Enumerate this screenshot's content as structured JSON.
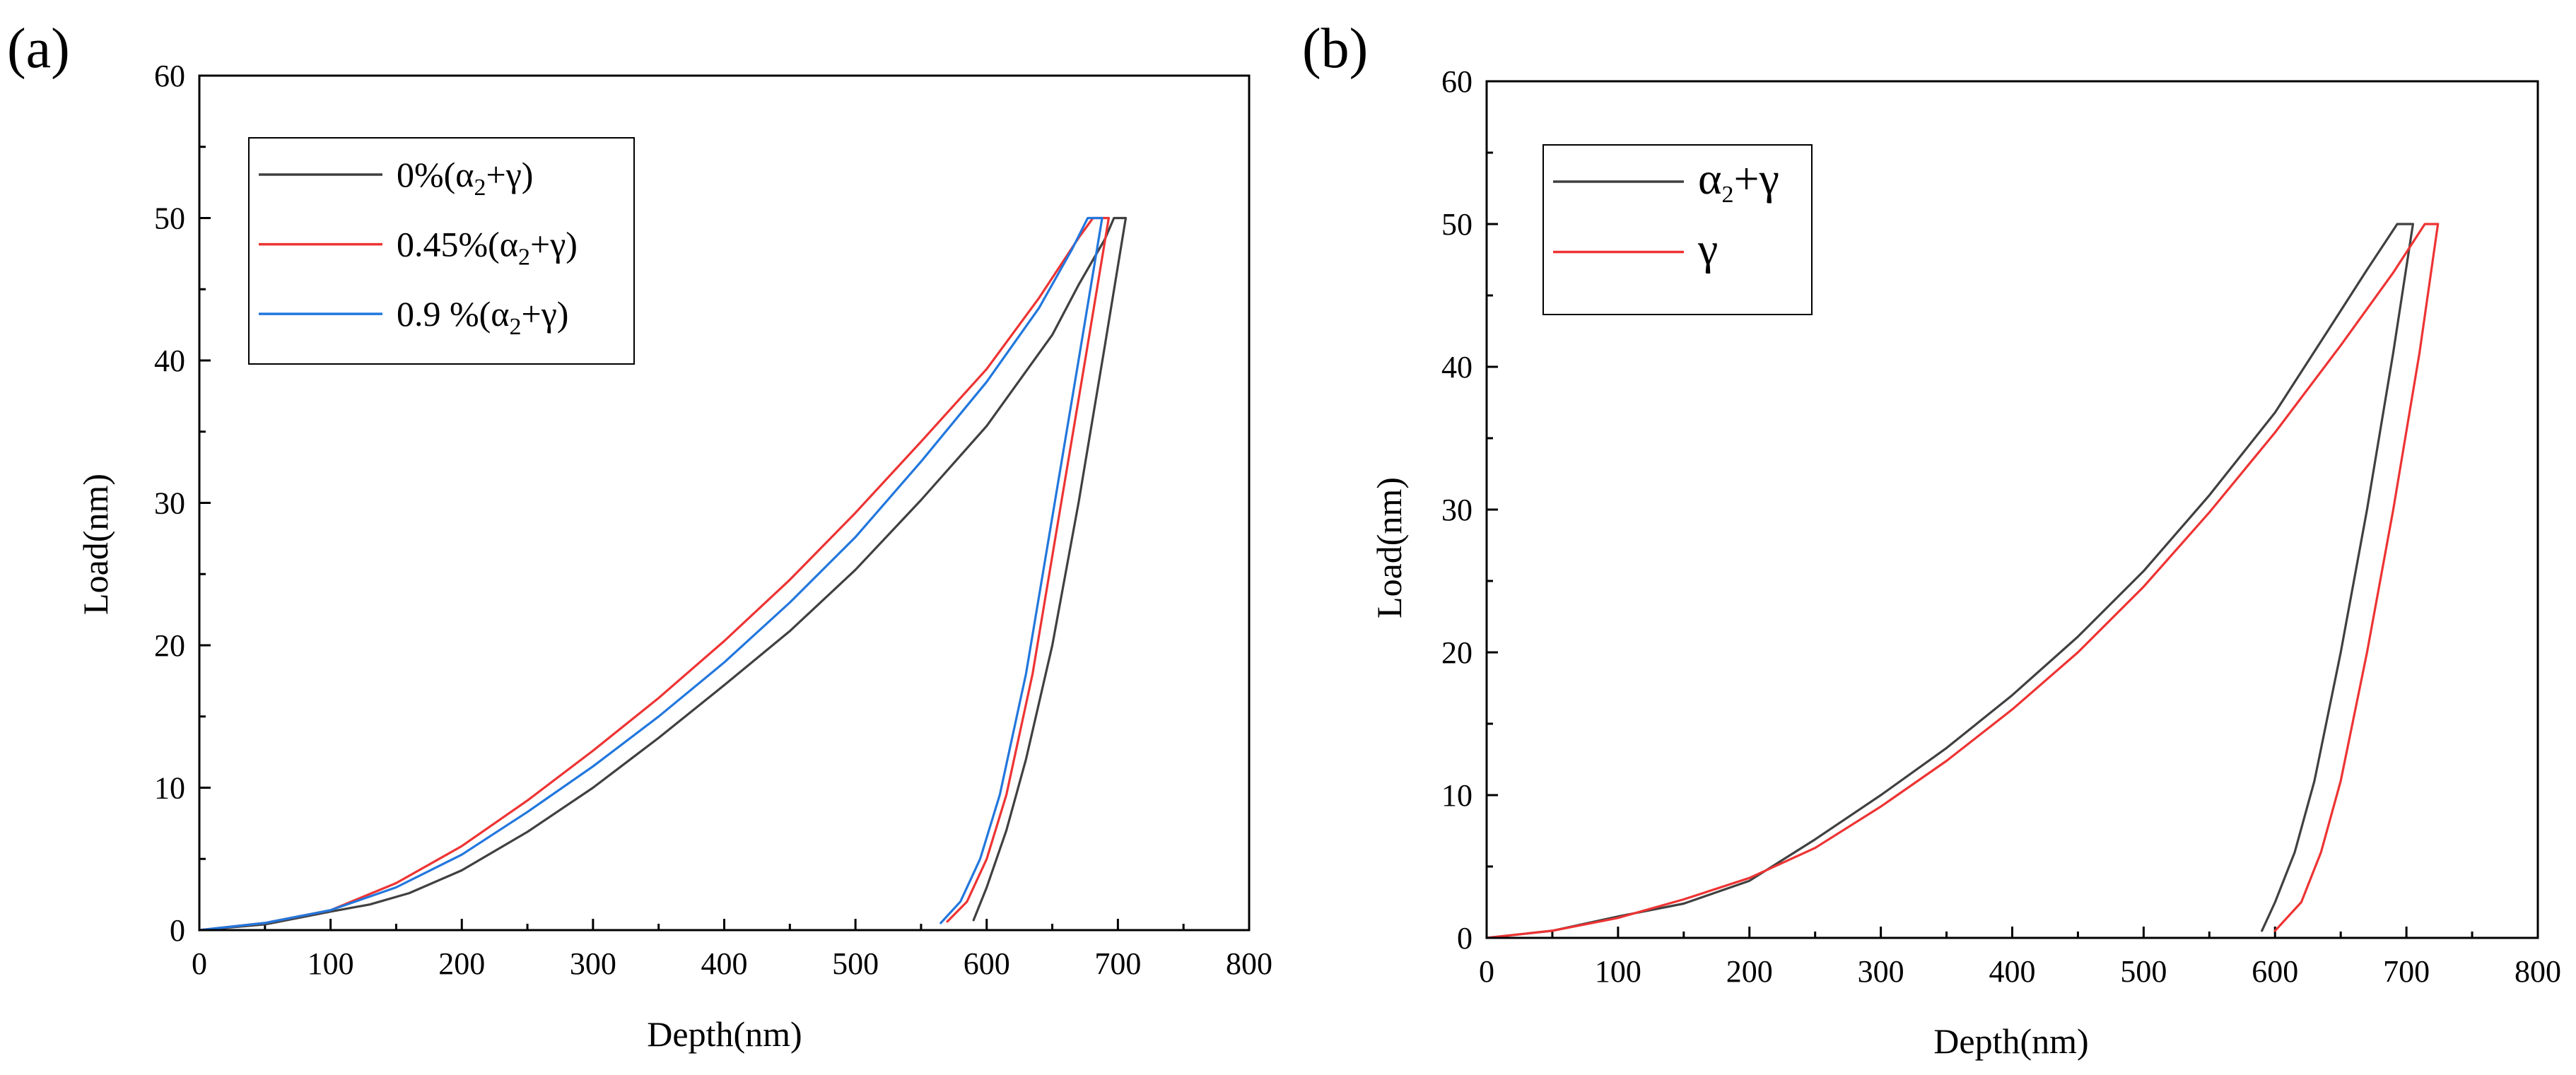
{
  "chart_data": [
    {
      "panel_label": "(a)",
      "type": "line",
      "xlabel": "Depth(nm)",
      "ylabel": "Load(nm)",
      "xlim": [
        0,
        800
      ],
      "ylim": [
        0,
        60
      ],
      "xticks": [
        0,
        100,
        200,
        300,
        400,
        500,
        600,
        700,
        800
      ],
      "yticks": [
        0,
        10,
        20,
        30,
        40,
        50,
        60
      ],
      "grid": false,
      "legend_position": "top-left",
      "series": [
        {
          "name": "0%(α2+γ)",
          "label_base": "0%(α",
          "label_sub": "2",
          "label_tail": "+γ)",
          "color": "#404040",
          "loading": [
            [
              0,
              0
            ],
            [
              50,
              0.4
            ],
            [
              100,
              1.3
            ],
            [
              130,
              1.8
            ],
            [
              160,
              2.6
            ],
            [
              200,
              4.2
            ],
            [
              250,
              6.9
            ],
            [
              300,
              10.0
            ],
            [
              350,
              13.5
            ],
            [
              400,
              17.2
            ],
            [
              450,
              21.0
            ],
            [
              500,
              25.3
            ],
            [
              550,
              30.2
            ],
            [
              600,
              35.4
            ],
            [
              650,
              41.8
            ],
            [
              670,
              45.3
            ],
            [
              690,
              48.5
            ],
            [
              697,
              50
            ]
          ],
          "hold": [
            [
              697,
              50
            ],
            [
              706,
              50
            ]
          ],
          "unloading": [
            [
              706,
              50
            ],
            [
              690,
              41
            ],
            [
              670,
              30
            ],
            [
              650,
              20
            ],
            [
              630,
              12
            ],
            [
              615,
              7
            ],
            [
              600,
              3
            ],
            [
              590,
              0.7
            ]
          ]
        },
        {
          "name": "0.45%(α2+γ)",
          "label_base": "0.45%(α",
          "label_sub": "2",
          "label_tail": "+γ)",
          "color": "#ee3333",
          "loading": [
            [
              0,
              0
            ],
            [
              50,
              0.5
            ],
            [
              100,
              1.4
            ],
            [
              150,
              3.3
            ],
            [
              200,
              5.9
            ],
            [
              250,
              9.1
            ],
            [
              300,
              12.6
            ],
            [
              350,
              16.3
            ],
            [
              400,
              20.3
            ],
            [
              450,
              24.6
            ],
            [
              500,
              29.3
            ],
            [
              550,
              34.3
            ],
            [
              600,
              39.4
            ],
            [
              640,
              44.4
            ],
            [
              670,
              48.6
            ],
            [
              681,
              50
            ]
          ],
          "hold": [
            [
              681,
              50
            ],
            [
              693,
              50
            ]
          ],
          "unloading": [
            [
              693,
              50
            ],
            [
              675,
              40
            ],
            [
              655,
              29
            ],
            [
              635,
              18
            ],
            [
              615,
              9.5
            ],
            [
              600,
              5
            ],
            [
              585,
              2
            ],
            [
              570,
              0.6
            ]
          ]
        },
        {
          "name": "0.9 %(α2+γ)",
          "label_base": "0.9 %(α",
          "label_sub": "2",
          "label_tail": "+γ)",
          "color": "#2277dd",
          "loading": [
            [
              0,
              0
            ],
            [
              50,
              0.5
            ],
            [
              100,
              1.4
            ],
            [
              150,
              3.0
            ],
            [
              200,
              5.3
            ],
            [
              250,
              8.3
            ],
            [
              300,
              11.5
            ],
            [
              350,
              15.0
            ],
            [
              400,
              18.8
            ],
            [
              450,
              23.0
            ],
            [
              500,
              27.6
            ],
            [
              550,
              32.9
            ],
            [
              600,
              38.5
            ],
            [
              640,
              43.7
            ],
            [
              665,
              47.8
            ],
            [
              677,
              50
            ]
          ],
          "hold": [
            [
              677,
              50
            ],
            [
              688,
              50
            ]
          ],
          "unloading": [
            [
              688,
              50
            ],
            [
              670,
              40
            ],
            [
              650,
              29
            ],
            [
              630,
              18
            ],
            [
              610,
              9.5
            ],
            [
              595,
              5
            ],
            [
              580,
              2
            ],
            [
              565,
              0.5
            ]
          ]
        }
      ]
    },
    {
      "panel_label": "(b)",
      "type": "line",
      "xlabel": "Depth(nm)",
      "ylabel": "Load(nm)",
      "xlim": [
        0,
        800
      ],
      "ylim": [
        0,
        60
      ],
      "xticks": [
        0,
        100,
        200,
        300,
        400,
        500,
        600,
        700,
        800
      ],
      "yticks": [
        0,
        10,
        20,
        30,
        40,
        50,
        60
      ],
      "grid": false,
      "legend_position": "top-left",
      "series": [
        {
          "name": "α2+γ",
          "label_base": "α",
          "label_sub": "2",
          "label_tail": "+γ",
          "color": "#404040",
          "loading": [
            [
              0,
              0
            ],
            [
              50,
              0.5
            ],
            [
              100,
              1.5
            ],
            [
              150,
              2.4
            ],
            [
              200,
              4.0
            ],
            [
              250,
              6.9
            ],
            [
              300,
              10.0
            ],
            [
              350,
              13.3
            ],
            [
              400,
              17.0
            ],
            [
              450,
              21.1
            ],
            [
              500,
              25.7
            ],
            [
              550,
              31.0
            ],
            [
              600,
              36.8
            ],
            [
              640,
              42.5
            ],
            [
              670,
              46.8
            ],
            [
              693,
              50
            ]
          ],
          "hold": [
            [
              693,
              50
            ],
            [
              705,
              50
            ]
          ],
          "unloading": [
            [
              705,
              50
            ],
            [
              690,
              41
            ],
            [
              670,
              30
            ],
            [
              650,
              20
            ],
            [
              630,
              11
            ],
            [
              615,
              6
            ],
            [
              600,
              2.5
            ],
            [
              590,
              0.5
            ]
          ]
        },
        {
          "name": "γ",
          "label_base": "γ",
          "label_sub": "",
          "label_tail": "",
          "color": "#ee3333",
          "loading": [
            [
              0,
              0
            ],
            [
              50,
              0.5
            ],
            [
              100,
              1.4
            ],
            [
              150,
              2.7
            ],
            [
              200,
              4.2
            ],
            [
              250,
              6.3
            ],
            [
              300,
              9.2
            ],
            [
              350,
              12.4
            ],
            [
              400,
              16.0
            ],
            [
              450,
              20.0
            ],
            [
              500,
              24.6
            ],
            [
              550,
              29.8
            ],
            [
              600,
              35.4
            ],
            [
              650,
              41.5
            ],
            [
              690,
              46.6
            ],
            [
              714,
              50
            ]
          ],
          "hold": [
            [
              714,
              50
            ],
            [
              724,
              50
            ]
          ],
          "unloading": [
            [
              724,
              50
            ],
            [
              710,
              41
            ],
            [
              690,
              30
            ],
            [
              670,
              20
            ],
            [
              650,
              11
            ],
            [
              635,
              6
            ],
            [
              620,
              2.5
            ],
            [
              600,
              0.5
            ]
          ]
        }
      ]
    }
  ]
}
